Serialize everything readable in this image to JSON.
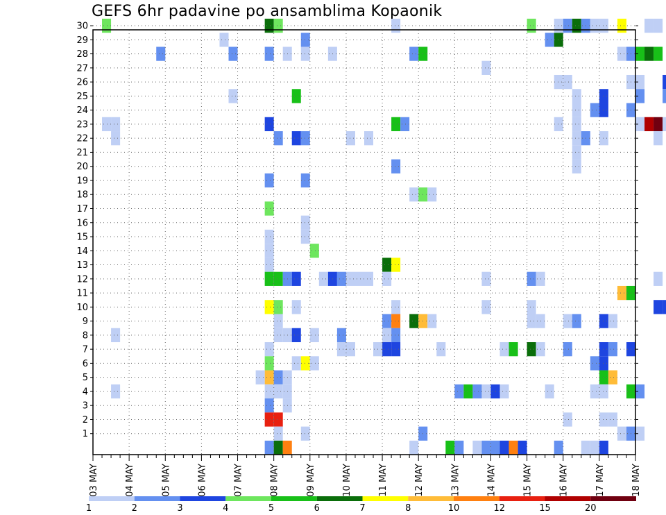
{
  "chart_data": {
    "type": "heatmap",
    "title": "GEFS 6hr padavine po ansamblima Kopaonik",
    "ylim": [
      0,
      30
    ],
    "y_ticks": [
      1,
      2,
      3,
      4,
      5,
      6,
      7,
      8,
      9,
      10,
      11,
      12,
      13,
      14,
      15,
      16,
      17,
      18,
      19,
      20,
      21,
      22,
      23,
      24,
      25,
      26,
      27,
      28,
      29,
      30
    ],
    "x_start": "03 MAY",
    "x_end": "18 MAY",
    "step_hours": 6,
    "x_tick_labels": [
      "03 MAY",
      "04 MAY",
      "05 MAY",
      "06 MAY",
      "07 MAY",
      "08 MAY",
      "09 MAY",
      "10 MAY",
      "11 MAY",
      "12 MAY",
      "13 MAY",
      "14 MAY",
      "15 MAY",
      "16 MAY",
      "17 MAY",
      "18 MAY"
    ],
    "grid": true,
    "colorbar": {
      "labels": [
        "1",
        "2",
        "3",
        "4",
        "5",
        "6",
        "7",
        "8",
        "10",
        "12",
        "15",
        "20"
      ],
      "colors": [
        "#bfcff5",
        "#6490f0",
        "#1e45e0",
        "#6ee65e",
        "#18c018",
        "#0a6e0a",
        "#ffff00",
        "#ffbc38",
        "#ff8010",
        "#e82010",
        "#b00000",
        "#700010"
      ]
    },
    "note": "cells: [step_index_from_03_MAY_00z, member, color_class 0..11]",
    "cells": [
      [
        1,
        30,
        3
      ],
      [
        1,
        23,
        0
      ],
      [
        2,
        23,
        0
      ],
      [
        2,
        22,
        0
      ],
      [
        2,
        8,
        0
      ],
      [
        2,
        4,
        0
      ],
      [
        7,
        28,
        1
      ],
      [
        14,
        29,
        0
      ],
      [
        15,
        28,
        1
      ],
      [
        15,
        25,
        0
      ],
      [
        19,
        30,
        5
      ],
      [
        20,
        30,
        3
      ],
      [
        19,
        28,
        1
      ],
      [
        21,
        28,
        0
      ],
      [
        19,
        23,
        2
      ],
      [
        20,
        22,
        1
      ],
      [
        22,
        22,
        2
      ],
      [
        23,
        22,
        1
      ],
      [
        22,
        25,
        4
      ],
      [
        19,
        19,
        1
      ],
      [
        19,
        17,
        3
      ],
      [
        19,
        15,
        0
      ],
      [
        19,
        14,
        0
      ],
      [
        19,
        13,
        0
      ],
      [
        19,
        12,
        4
      ],
      [
        20,
        12,
        4
      ],
      [
        21,
        12,
        1
      ],
      [
        22,
        12,
        2
      ],
      [
        19,
        10,
        6
      ],
      [
        20,
        10,
        3
      ],
      [
        22,
        10,
        0
      ],
      [
        20,
        8,
        0
      ],
      [
        21,
        8,
        0
      ],
      [
        22,
        8,
        2
      ],
      [
        24,
        8,
        0
      ],
      [
        20,
        9,
        0
      ],
      [
        19,
        7,
        0
      ],
      [
        19,
        6,
        3
      ],
      [
        19,
        5,
        7
      ],
      [
        18,
        5,
        0
      ],
      [
        20,
        5,
        1
      ],
      [
        21,
        5,
        0
      ],
      [
        19,
        4,
        0
      ],
      [
        20,
        4,
        0
      ],
      [
        21,
        4,
        0
      ],
      [
        21,
        3,
        0
      ],
      [
        19,
        3,
        1
      ],
      [
        19,
        2,
        9
      ],
      [
        20,
        2,
        9
      ],
      [
        20,
        1,
        0
      ],
      [
        19,
        0,
        1
      ],
      [
        20,
        0,
        5
      ],
      [
        21,
        0,
        8
      ],
      [
        23,
        29,
        1
      ],
      [
        23,
        28,
        0
      ],
      [
        23,
        19,
        1
      ],
      [
        23,
        16,
        0
      ],
      [
        23,
        15,
        0
      ],
      [
        24,
        14,
        3
      ],
      [
        22,
        6,
        0
      ],
      [
        23,
        6,
        6
      ],
      [
        24,
        6,
        0
      ],
      [
        23,
        1,
        0
      ],
      [
        26,
        28,
        0
      ],
      [
        25,
        12,
        0
      ],
      [
        26,
        12,
        2
      ],
      [
        27,
        12,
        1
      ],
      [
        28,
        12,
        0
      ],
      [
        27,
        8,
        1
      ],
      [
        28,
        22,
        0
      ],
      [
        30,
        22,
        0
      ],
      [
        30,
        12,
        0
      ],
      [
        29,
        12,
        0
      ],
      [
        28,
        7,
        0
      ],
      [
        27,
        7,
        0
      ],
      [
        33,
        30,
        0
      ],
      [
        33,
        23,
        4
      ],
      [
        34,
        23,
        1
      ],
      [
        33,
        20,
        1
      ],
      [
        32,
        13,
        5
      ],
      [
        33,
        13,
        6
      ],
      [
        32,
        12,
        0
      ],
      [
        33,
        10,
        0
      ],
      [
        32,
        9,
        1
      ],
      [
        33,
        9,
        8
      ],
      [
        32,
        8,
        0
      ],
      [
        33,
        8,
        1
      ],
      [
        32,
        7,
        2
      ],
      [
        33,
        7,
        2
      ],
      [
        31,
        7,
        0
      ],
      [
        35,
        28,
        1
      ],
      [
        36,
        28,
        4
      ],
      [
        35,
        18,
        0
      ],
      [
        36,
        18,
        3
      ],
      [
        37,
        18,
        0
      ],
      [
        35,
        9,
        5
      ],
      [
        36,
        9,
        7
      ],
      [
        37,
        9,
        0
      ],
      [
        36,
        1,
        1
      ],
      [
        35,
        0,
        0
      ],
      [
        40,
        4,
        1
      ],
      [
        41,
        4,
        4
      ],
      [
        42,
        4,
        1
      ],
      [
        39,
        0,
        4
      ],
      [
        40,
        0,
        1
      ],
      [
        38,
        7,
        0
      ],
      [
        43,
        27,
        0
      ],
      [
        43,
        12,
        0
      ],
      [
        43,
        10,
        0
      ],
      [
        45,
        7,
        0
      ],
      [
        46,
        7,
        4
      ],
      [
        43,
        4,
        0
      ],
      [
        44,
        4,
        2
      ],
      [
        45,
        4,
        0
      ],
      [
        42,
        0,
        0
      ],
      [
        43,
        0,
        1
      ],
      [
        44,
        0,
        1
      ],
      [
        45,
        0,
        2
      ],
      [
        46,
        0,
        8
      ],
      [
        47,
        0,
        2
      ],
      [
        48,
        30,
        3
      ],
      [
        48,
        12,
        1
      ],
      [
        49,
        12,
        0
      ],
      [
        48,
        10,
        0
      ],
      [
        48,
        9,
        0
      ],
      [
        49,
        9,
        0
      ],
      [
        48,
        7,
        5
      ],
      [
        49,
        7,
        0
      ],
      [
        50,
        4,
        0
      ],
      [
        51,
        0,
        1
      ],
      [
        50,
        29,
        1
      ],
      [
        51,
        29,
        5
      ],
      [
        51,
        30,
        0
      ],
      [
        52,
        30,
        1
      ],
      [
        53,
        30,
        5
      ],
      [
        54,
        30,
        1
      ],
      [
        55,
        30,
        0
      ],
      [
        56,
        30,
        0
      ],
      [
        51,
        26,
        0
      ],
      [
        52,
        26,
        0
      ],
      [
        51,
        23,
        0
      ],
      [
        53,
        25,
        0
      ],
      [
        53,
        24,
        0
      ],
      [
        53,
        23,
        0
      ],
      [
        53,
        22,
        0
      ],
      [
        53,
        21,
        0
      ],
      [
        54,
        22,
        1
      ],
      [
        53,
        20,
        0
      ],
      [
        52,
        9,
        0
      ],
      [
        53,
        9,
        1
      ],
      [
        52,
        7,
        1
      ],
      [
        52,
        2,
        0
      ],
      [
        54,
        0,
        0
      ],
      [
        56,
        25,
        2
      ],
      [
        55,
        24,
        1
      ],
      [
        56,
        24,
        2
      ],
      [
        56,
        22,
        0
      ],
      [
        55,
        6,
        1
      ],
      [
        56,
        6,
        2
      ],
      [
        56,
        7,
        2
      ],
      [
        57,
        7,
        1
      ],
      [
        56,
        5,
        4
      ],
      [
        57,
        5,
        7
      ],
      [
        56,
        9,
        2
      ],
      [
        57,
        9,
        0
      ],
      [
        55,
        4,
        0
      ],
      [
        56,
        4,
        0
      ],
      [
        56,
        2,
        0
      ],
      [
        57,
        2,
        0
      ],
      [
        55,
        0,
        0
      ],
      [
        56,
        0,
        2
      ],
      [
        58,
        1,
        0
      ],
      [
        59,
        1,
        1
      ],
      [
        60,
        1,
        0
      ],
      [
        58,
        11,
        7
      ],
      [
        59,
        11,
        4
      ],
      [
        59,
        7,
        2
      ],
      [
        59,
        4,
        4
      ],
      [
        60,
        4,
        1
      ],
      [
        58,
        28,
        0
      ],
      [
        59,
        28,
        1
      ],
      [
        60,
        28,
        4
      ],
      [
        61,
        28,
        5
      ],
      [
        62,
        28,
        4
      ],
      [
        59,
        26,
        0
      ],
      [
        60,
        26,
        0
      ],
      [
        60,
        25,
        1
      ],
      [
        59,
        24,
        1
      ],
      [
        60,
        23,
        0
      ],
      [
        61,
        23,
        10
      ],
      [
        62,
        23,
        11
      ],
      [
        63,
        23,
        0
      ],
      [
        58,
        30,
        6
      ],
      [
        61,
        30,
        0
      ],
      [
        62,
        30,
        0
      ],
      [
        63,
        26,
        2
      ],
      [
        63,
        25,
        1
      ],
      [
        62,
        22,
        0
      ],
      [
        62,
        12,
        0
      ],
      [
        62,
        10,
        2
      ],
      [
        63,
        10,
        2
      ]
    ]
  }
}
